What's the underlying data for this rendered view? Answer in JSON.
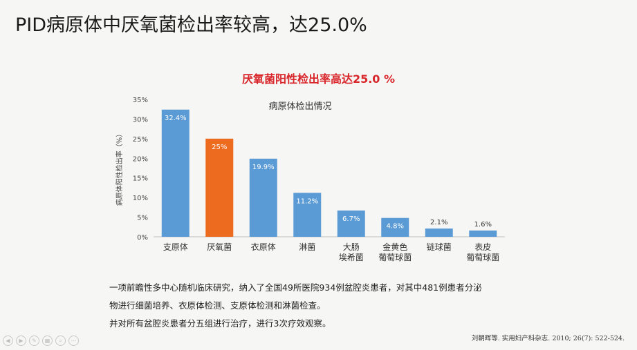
{
  "slide": {
    "title": "PID病原体中厌氧菌检出率较高，达25.0%"
  },
  "chart_data": {
    "type": "bar",
    "title": "病原体检出情况",
    "subtitle": "厌氧菌阳性检出率高达25.0 %",
    "ylabel": "病原体阳性检出率（%）",
    "xlabel": "",
    "ylim": [
      0,
      35
    ],
    "yticks": [
      "0%",
      "5%",
      "10%",
      "15%",
      "20%",
      "25%",
      "30%",
      "35%"
    ],
    "grid": false,
    "legend": "none",
    "categories": [
      [
        "支原体"
      ],
      [
        "厌氧菌"
      ],
      [
        "衣原体"
      ],
      [
        "淋菌"
      ],
      [
        "大肠",
        "埃希菌"
      ],
      [
        "金黄色",
        "葡萄球菌"
      ],
      [
        "链球菌"
      ],
      [
        "表皮",
        "葡萄球菌"
      ]
    ],
    "values": [
      32.4,
      25,
      19.9,
      11.2,
      6.7,
      4.8,
      2.1,
      1.6
    ],
    "labels": [
      "32.4%",
      "25%",
      "19.9%",
      "11.2%",
      "6.7%",
      "4.8%",
      "2.1%",
      "1.6%"
    ],
    "colors": [
      "#5b9bd5",
      "#ed6b1f",
      "#5b9bd5",
      "#5b9bd5",
      "#5b9bd5",
      "#5b9bd5",
      "#5b9bd5",
      "#5b9bd5"
    ],
    "highlight_index": 1
  },
  "notes": [
    "一项前瞻性多中心随机临床研究，纳入了全国49所医院934例盆腔炎患者，对其中481例患者分泌",
    "物进行细菌培养、衣原体检测、支原体检测和淋菌检查。",
    "并对所有盆腔炎患者分五组进行治疗，进行3次疗效观察。"
  ],
  "citation": "刘朝晖等. 实用妇产科杂志. 2010; 26(7): 522-524.",
  "player_icons": [
    "prev-icon",
    "next-icon",
    "pen-icon",
    "slides-icon",
    "zoom-icon",
    "more-icon"
  ]
}
